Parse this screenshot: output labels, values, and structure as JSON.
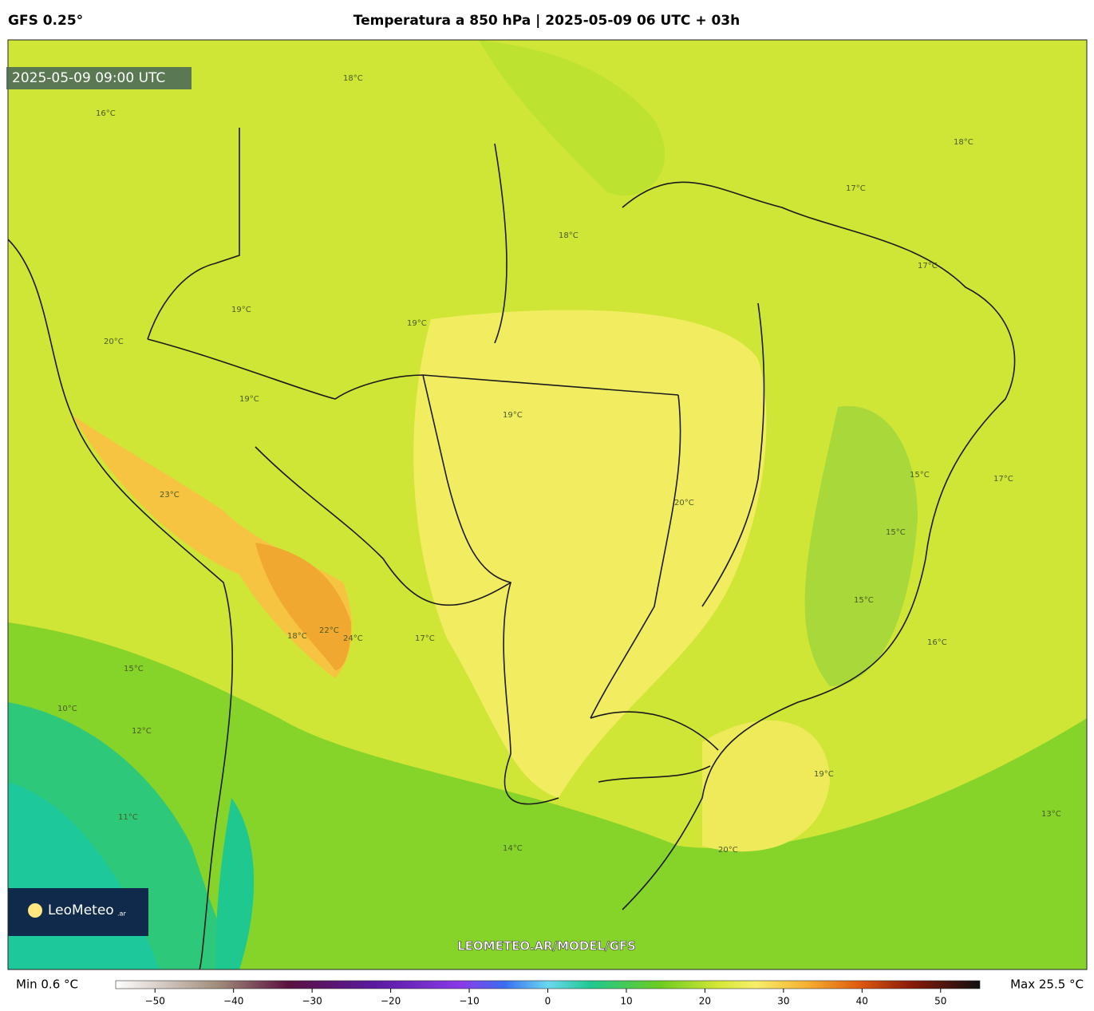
{
  "header": {
    "model": "GFS 0.25°",
    "title": "Temperatura a 850 hPa | 2025-05-09 06 UTC + 03h"
  },
  "map": {
    "valid_time": "2025-05-09 09:00 UTC",
    "watermark": "LEOMETEO.AR/MODEL/GFS",
    "logo": {
      "name": "LeoMeteo",
      "suffix": ".ar"
    },
    "contour_labels": [
      "19°C",
      "19°C",
      "18°C",
      "18°C",
      "19°C",
      "20°C",
      "19°C",
      "20°C",
      "23°C",
      "22°C",
      "24°C",
      "18°C",
      "17°C",
      "17°C",
      "16°C",
      "15°C",
      "15°C",
      "15°C",
      "16°C",
      "17°C",
      "19°C",
      "20°C",
      "15°C",
      "12°C",
      "10°C",
      "11°C",
      "13°C",
      "18°C",
      "17°C",
      "14°C"
    ]
  },
  "colorbar": {
    "min_text": "Min 0.6 °C",
    "max_text": "Max 25.5 °C",
    "lim": [
      -55,
      55
    ],
    "ticks": [
      {
        "value": -50,
        "label": "−50"
      },
      {
        "value": -40,
        "label": "−40"
      },
      {
        "value": -30,
        "label": "−30"
      },
      {
        "value": -20,
        "label": "−20"
      },
      {
        "value": -10,
        "label": "−10"
      },
      0,
      10,
      20,
      30,
      40,
      50
    ]
  }
}
